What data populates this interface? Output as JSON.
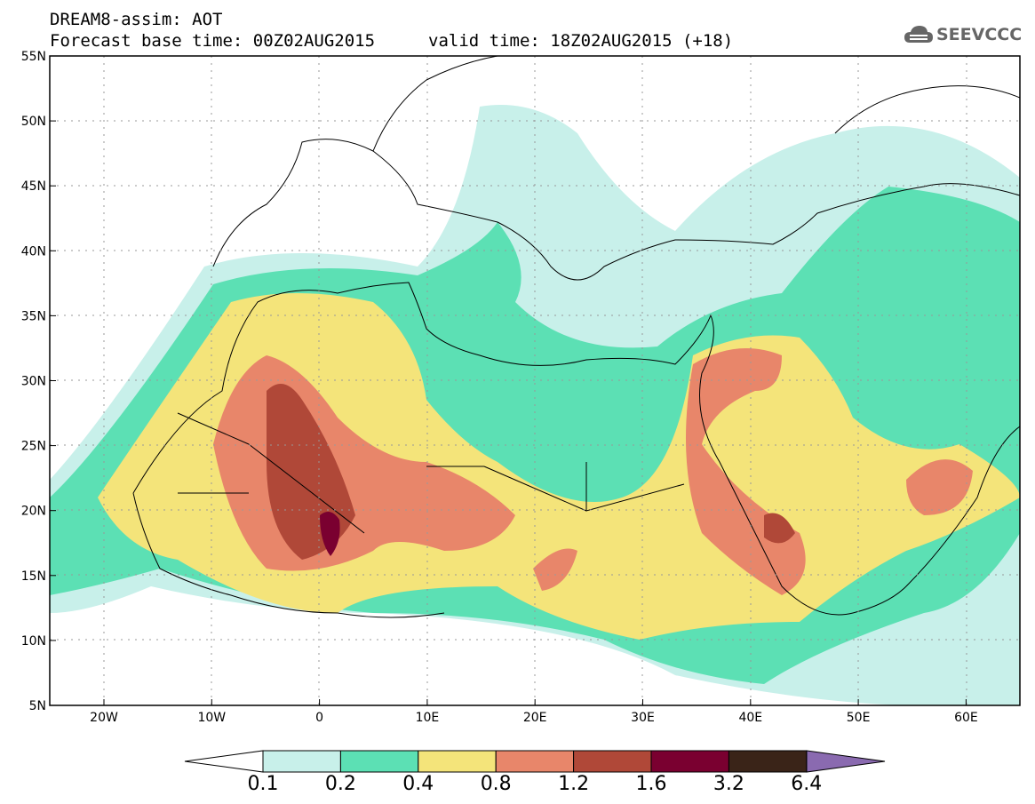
{
  "header": {
    "title": "DREAM8-assim: AOT",
    "forecast_base": "Forecast base time: 00Z02AUG2015",
    "valid_time": "valid time: 18Z02AUG2015 (+18)",
    "logo_text": "SEEVCCC"
  },
  "map": {
    "lat_labels": [
      "55N",
      "50N",
      "45N",
      "40N",
      "35N",
      "30N",
      "25N",
      "20N",
      "15N",
      "10N",
      "5N"
    ],
    "lon_labels": [
      "20W",
      "10W",
      "0",
      "10E",
      "20E",
      "30E",
      "40E",
      "50E",
      "60E"
    ]
  },
  "colorbar": {
    "labels": [
      "0.1",
      "0.2",
      "0.4",
      "0.8",
      "1.2",
      "1.6",
      "3.2",
      "6.4"
    ],
    "colors": [
      "#c8f0ea",
      "#5ce0b4",
      "#f4e47a",
      "#e8866a",
      "#b04838",
      "#7a0030",
      "#3a2418",
      "#8a6ab0"
    ]
  }
}
